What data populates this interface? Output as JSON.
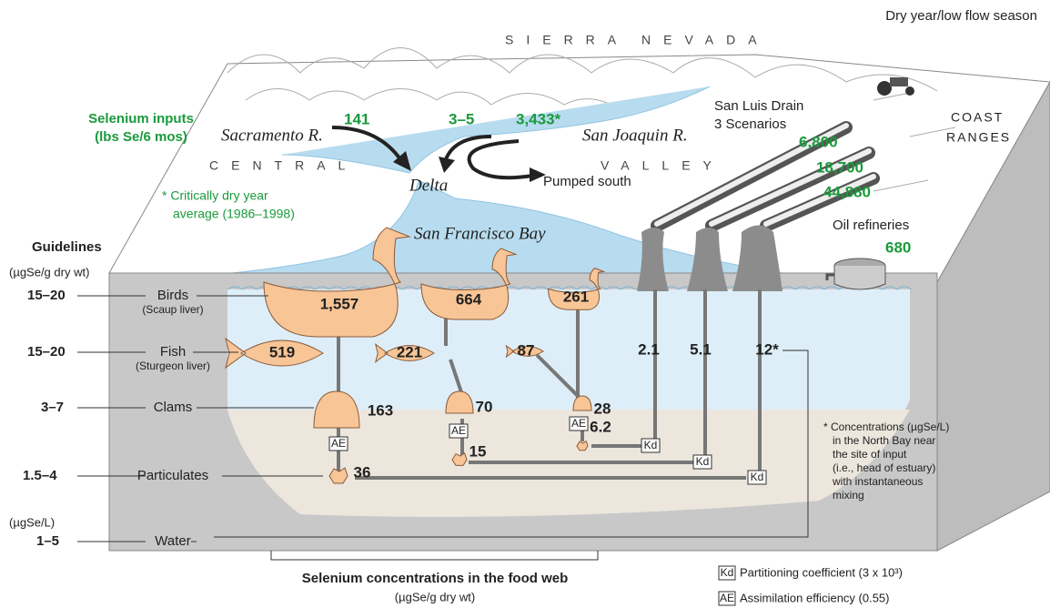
{
  "header": {
    "title": "Dry year/low flow season"
  },
  "landscape": {
    "sierra": "SIERRA",
    "nevada": "NEVADA",
    "central": "CENTRAL",
    "valley": "VALLEY",
    "coast": "COAST",
    "ranges": "RANGES",
    "bay": "San Francisco Bay",
    "delta": "Delta"
  },
  "inputs": {
    "title": "Selenium inputs",
    "unit": "(lbs Se/6 mos)",
    "sacramento": "Sacramento R.",
    "sacramento_value": "141",
    "delta_value": "3–5",
    "san_joaquin_value": "3,433*",
    "san_joaquin": "San Joaquin R.",
    "pumped": "Pumped south",
    "note": [
      "* Critically dry year",
      "average (1986–1998)"
    ]
  },
  "drain": {
    "title": "San Luis Drain",
    "subtitle": "3 Scenarios",
    "scenarios": [
      "6,800",
      "18,700",
      "44,880"
    ]
  },
  "refineries": {
    "label": "Oil refineries",
    "value": "680"
  },
  "guidelines": {
    "title": "Guidelines",
    "unit": "(µgSe/g dry wt)",
    "water_unit": "(µgSe/L)",
    "rows": [
      {
        "value": "15–20",
        "label": "Birds",
        "sub": "(Scaup liver)"
      },
      {
        "value": "15–20",
        "label": "Fish",
        "sub": "(Sturgeon liver)"
      },
      {
        "value": "3–7",
        "label": "Clams"
      },
      {
        "value": "1.5–4",
        "label": "Particulates"
      },
      {
        "value": "1–5",
        "label": "Water"
      }
    ]
  },
  "food_web": {
    "birds": [
      "1,557",
      "664",
      "261"
    ],
    "fish": [
      "519",
      "221",
      "87"
    ],
    "clams": [
      "163",
      "70",
      "28"
    ],
    "particulates": [
      "36",
      "15",
      "6.2"
    ],
    "water": [
      "2.1",
      "5.1",
      "12*"
    ],
    "caption": "Selenium concentrations in the food web",
    "unit": "(µgSe/g dry wt)"
  },
  "footnote": [
    "* Concentrations (µgSe/L)",
    "in the North Bay near",
    "the site of input",
    "(i.e., head of estuary)",
    "with instantaneous",
    "mixing"
  ],
  "legend": {
    "kd": "Kd",
    "kd_text": "Partitioning coefficient (3 x 10³)",
    "ae": "AE",
    "ae_text": "Assimilation efficiency (0.55)"
  }
}
